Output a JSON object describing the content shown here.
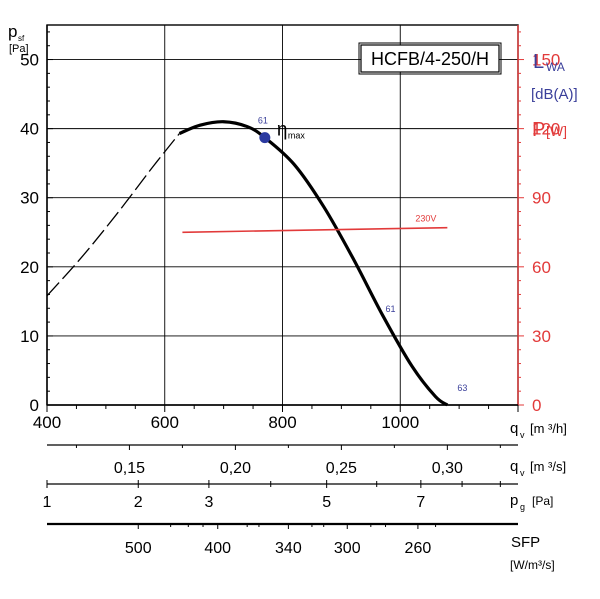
{
  "chart_data": {
    "type": "line",
    "title": "HCFB/4-250/H",
    "left_axis": {
      "label_main": "p",
      "label_sub": "sf",
      "unit": "[Pa]",
      "ylim": [
        0,
        55
      ],
      "ticks": [
        0,
        10,
        20,
        30,
        40,
        50
      ]
    },
    "right_axis": {
      "lwa_label": "L",
      "lwa_sub": "WA",
      "lwa_unit": "[dB(A)]",
      "power_label": "P",
      "power_unit": "[W]",
      "color_lwa": "#3a3f9a",
      "color_power": "#e23a3a",
      "ticks": [
        "0",
        "30",
        "60",
        "90",
        "120",
        "150"
      ],
      "tick_values": [
        0,
        30,
        60,
        90,
        120,
        150
      ],
      "ylim": [
        0,
        165
      ]
    },
    "x_axis": {
      "xlim": [
        400,
        1200
      ],
      "ticks": [
        400,
        600,
        800,
        1000
      ],
      "label_main": "q",
      "label_sub": "v",
      "unit": "[m ³/h]"
    },
    "x_axis_2": {
      "label_main": "q",
      "label_sub": "v",
      "unit": "[m ³/s]",
      "labels": [
        "0,15",
        "0,20",
        "0,25",
        "0,30"
      ],
      "values": [
        0.15,
        0.2,
        0.25,
        0.3
      ]
    },
    "x_axis_3": {
      "label_main": "p",
      "label_sub": "g",
      "unit": "[Pa]",
      "labels": [
        "1",
        "2",
        "3",
        "5",
        "7"
      ],
      "values": [
        1,
        2,
        3,
        5,
        7
      ]
    },
    "x_axis_4": {
      "label": "SFP",
      "unit": "[W/m³/s]",
      "labels": [
        "500",
        "400",
        "340",
        "300",
        "260"
      ],
      "values": [
        500,
        400,
        340,
        300,
        260
      ]
    },
    "series": [
      {
        "role": "pressure-dashed",
        "style": "dashed",
        "x": [
          400,
          460,
          520,
          580,
          625
        ],
        "y": [
          15.8,
          21.5,
          27.8,
          34.5,
          39.3
        ]
      },
      {
        "role": "pressure-solid",
        "style": "solid",
        "x": [
          625,
          660,
          700,
          740,
          770,
          820,
          870,
          920,
          970,
          1020,
          1060,
          1080
        ],
        "y": [
          39.3,
          40.5,
          41.0,
          40.3,
          38.7,
          34.8,
          28.7,
          21.2,
          13.0,
          5.6,
          1.2,
          0.0
        ]
      },
      {
        "name": "230V",
        "role": "power",
        "axis": "right",
        "x": [
          630,
          1080
        ],
        "y": [
          75,
          77
        ]
      }
    ],
    "annotations": {
      "eta_symbol": "η",
      "eta_sub": "max",
      "eta_point": {
        "x": 770,
        "y": 38.7
      },
      "sound_labels": [
        {
          "text": "61",
          "x": 770,
          "y": 38.7
        },
        {
          "text": "61",
          "x": 975,
          "y": 12.0
        },
        {
          "text": "63",
          "x": 1080,
          "y": 0.0
        }
      ]
    },
    "grid": true,
    "legend": "none"
  }
}
